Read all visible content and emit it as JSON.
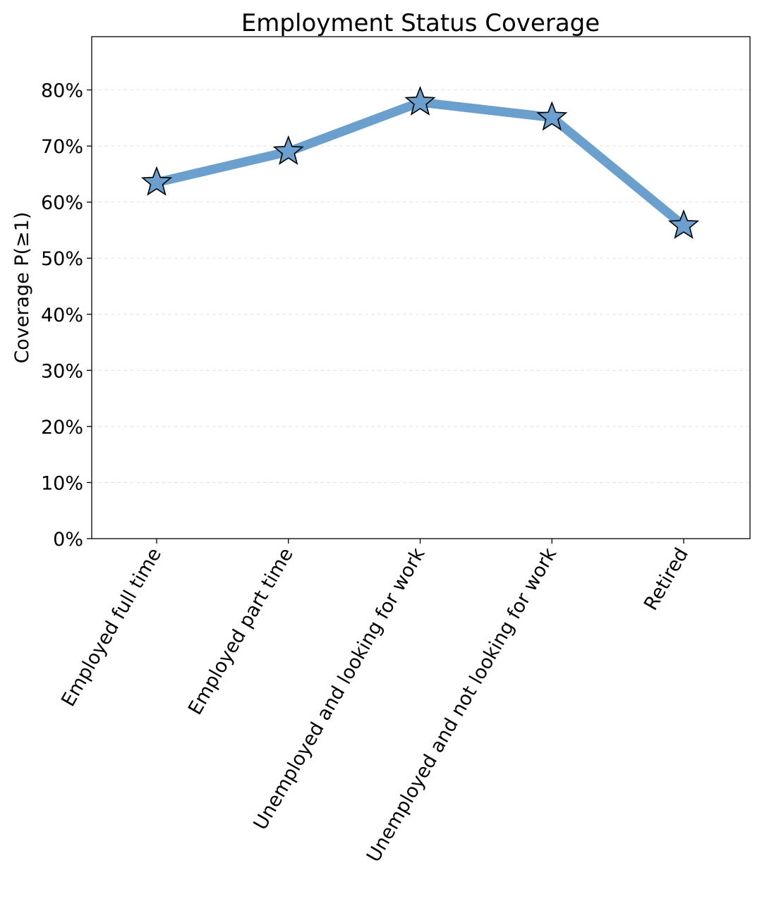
{
  "chart_data": {
    "type": "line",
    "title": "Employment Status Coverage",
    "xlabel": "",
    "ylabel": "Coverage P(≥1)",
    "categories": [
      "Employed full time",
      "Employed part time",
      "Unemployed and looking for work",
      "Unemployed and not looking for work",
      "Retired"
    ],
    "series": [
      {
        "values": [
          0.635,
          0.69,
          0.778,
          0.751,
          0.558
        ]
      }
    ],
    "ylim": [
      0,
      0.895
    ],
    "yticks": [
      0,
      0.1,
      0.2,
      0.3,
      0.4,
      0.5,
      0.6,
      0.7,
      0.8
    ],
    "ytick_labels": [
      "0%",
      "10%",
      "20%",
      "30%",
      "40%",
      "50%",
      "60%",
      "70%",
      "80%"
    ],
    "grid": "horizontal dashed",
    "marker": "star",
    "colors": {
      "line": "#6a9fce",
      "marker_fill": "#6a9fce",
      "marker_edge": "#000000",
      "grid": "#e3e3e3"
    }
  }
}
